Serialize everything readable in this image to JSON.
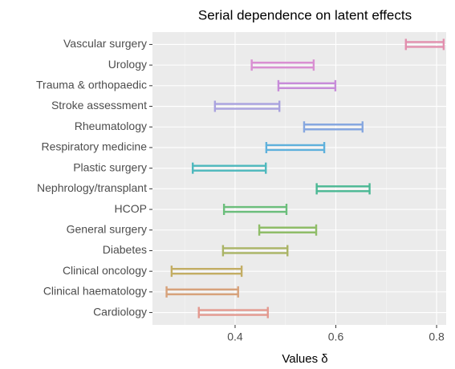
{
  "chart_data": {
    "type": "errorbar",
    "title": "Serial dependence on latent effects",
    "x_label": "Values δ",
    "categories": [
      "Vascular surgery",
      "Urology",
      "Trauma & orthopaedic",
      "Stroke assessment",
      "Rheumatology",
      "Respiratory medicine",
      "Plastic surgery",
      "Nephrology/transplant",
      "HCOP",
      "General surgery",
      "Diabetes",
      "Clinical oncology",
      "Clinical haematology",
      "Cardiology"
    ],
    "lower": [
      0.739,
      0.433,
      0.486,
      0.36,
      0.537,
      0.462,
      0.316,
      0.562,
      0.378,
      0.448,
      0.376,
      0.274,
      0.264,
      0.328
    ],
    "upper": [
      0.814,
      0.556,
      0.599,
      0.488,
      0.653,
      0.577,
      0.461,
      0.667,
      0.502,
      0.561,
      0.504,
      0.413,
      0.406,
      0.465
    ],
    "colors": [
      "#e28fae",
      "#d98fd2",
      "#c78bd9",
      "#a9a2df",
      "#86a7e0",
      "#5fb1dc",
      "#4db8bd",
      "#4bb894",
      "#6bbe7b",
      "#8fbd68",
      "#aab465",
      "#c3ad63",
      "#d7a27b",
      "#e3998f"
    ],
    "xlim": [
      0.236,
      0.819
    ],
    "xticks": [
      0.4,
      0.6,
      0.8
    ],
    "xminorticks": [
      0.3,
      0.5,
      0.7
    ],
    "grid": true
  }
}
